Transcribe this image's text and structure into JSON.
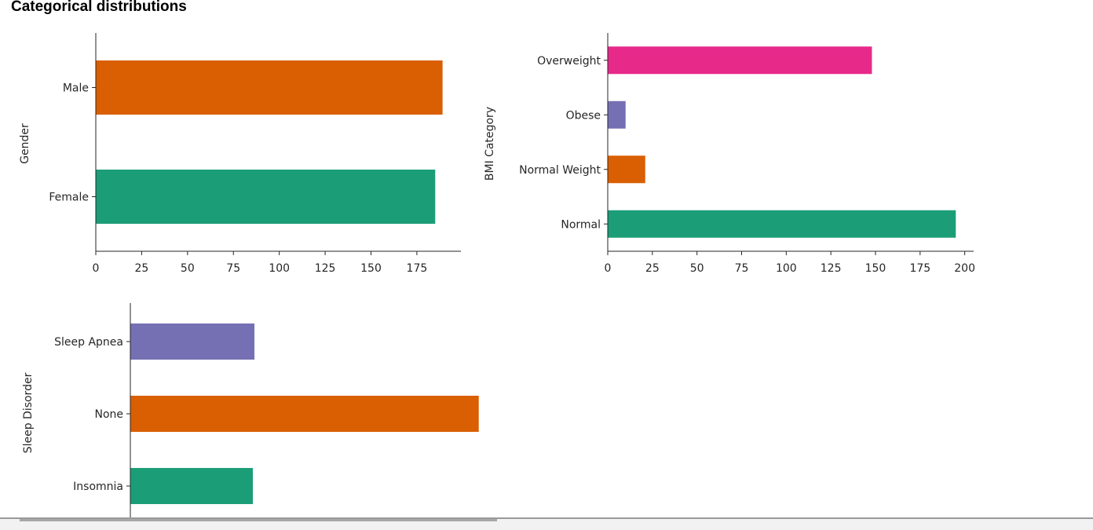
{
  "page": {
    "title": "Categorical distributions"
  },
  "chart_data": [
    {
      "type": "bar",
      "orientation": "horizontal",
      "ylabel": "Gender",
      "categories": [
        "Female",
        "Male"
      ],
      "values": [
        185,
        189
      ],
      "colors": [
        "#1b9e77",
        "#d95f02"
      ],
      "xlim": [
        0,
        199
      ],
      "xticks": [
        0,
        25,
        50,
        75,
        100,
        125,
        150,
        175
      ]
    },
    {
      "type": "bar",
      "orientation": "horizontal",
      "ylabel": "BMI Category",
      "categories": [
        "Normal",
        "Normal Weight",
        "Obese",
        "Overweight"
      ],
      "values": [
        195,
        21,
        10,
        148
      ],
      "colors": [
        "#1b9e77",
        "#d95f02",
        "#7570b3",
        "#e7298a"
      ],
      "xlim": [
        0,
        205
      ],
      "xticks": [
        0,
        25,
        50,
        75,
        100,
        125,
        150,
        175,
        200
      ]
    },
    {
      "type": "bar",
      "orientation": "horizontal",
      "ylabel": "Sleep Disorder",
      "categories": [
        "Insomnia",
        "None",
        "Sleep Apnea"
      ],
      "values": [
        77,
        219,
        78
      ],
      "colors": [
        "#1b9e77",
        "#d95f02",
        "#7570b3"
      ],
      "xlim": [
        0,
        230
      ],
      "xticks": []
    }
  ]
}
